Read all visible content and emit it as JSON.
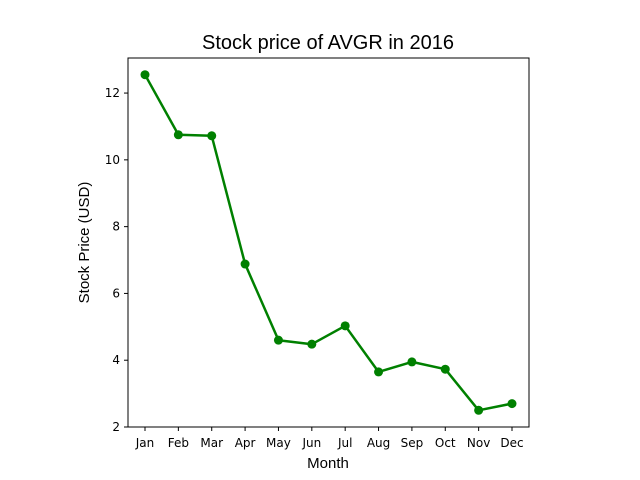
{
  "chart_data": {
    "type": "line",
    "title": "Stock price of AVGR in 2016",
    "xlabel": "Month",
    "ylabel": "Stock Price (USD)",
    "categories": [
      "Jan",
      "Feb",
      "Mar",
      "Apr",
      "May",
      "Jun",
      "Jul",
      "Aug",
      "Sep",
      "Oct",
      "Nov",
      "Dec"
    ],
    "series": [
      {
        "values": [
          12.55,
          10.75,
          10.72,
          6.88,
          4.6,
          4.48,
          5.03,
          3.65,
          3.95,
          3.73,
          2.5,
          2.7
        ],
        "color": "#008000",
        "marker": "circle"
      }
    ],
    "ylim": [
      2,
      13.05
    ],
    "yticks": [
      2,
      4,
      6,
      8,
      10,
      12
    ],
    "grid": false,
    "legend": "none"
  }
}
